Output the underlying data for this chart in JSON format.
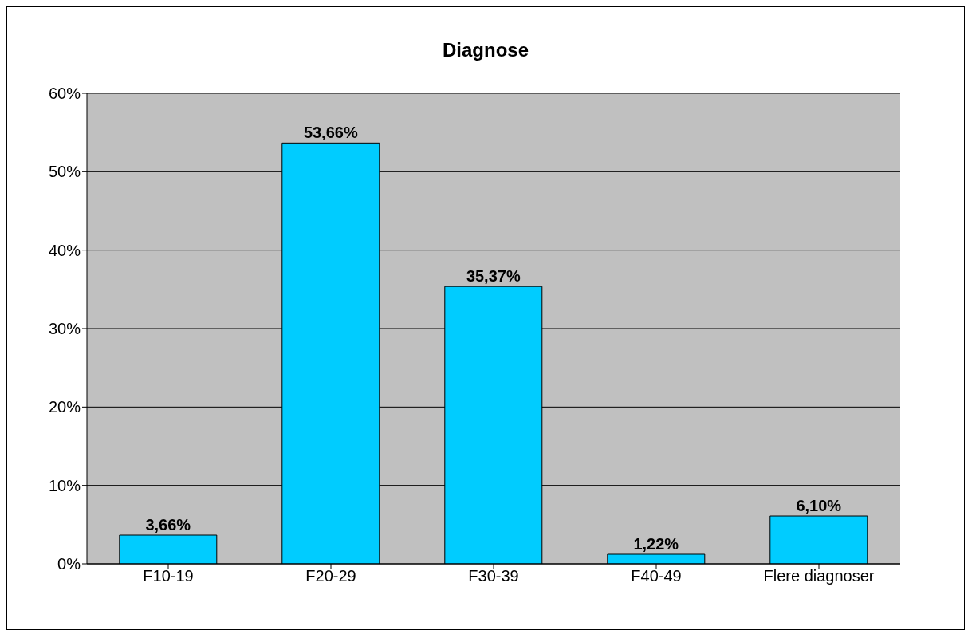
{
  "chart_data": {
    "type": "bar",
    "title": "Diagnose",
    "categories": [
      "F10-19",
      "F20-29",
      "F30-39",
      "F40-49",
      "Flere diagnoser"
    ],
    "values": [
      3.66,
      53.66,
      35.37,
      1.22,
      6.1
    ],
    "value_labels": [
      "3,66%",
      "53,66%",
      "35,37%",
      "1,22%",
      "6,10%"
    ],
    "color": "#00ccff",
    "ylim": [
      0,
      60
    ],
    "yticks": [
      {
        "value": 0,
        "label": "0%"
      },
      {
        "value": 10,
        "label": "10%"
      },
      {
        "value": 20,
        "label": "20%"
      },
      {
        "value": 30,
        "label": "30%"
      },
      {
        "value": 40,
        "label": "40%"
      },
      {
        "value": 50,
        "label": "50%"
      },
      {
        "value": 60,
        "label": "60%"
      }
    ],
    "grid": "y"
  }
}
